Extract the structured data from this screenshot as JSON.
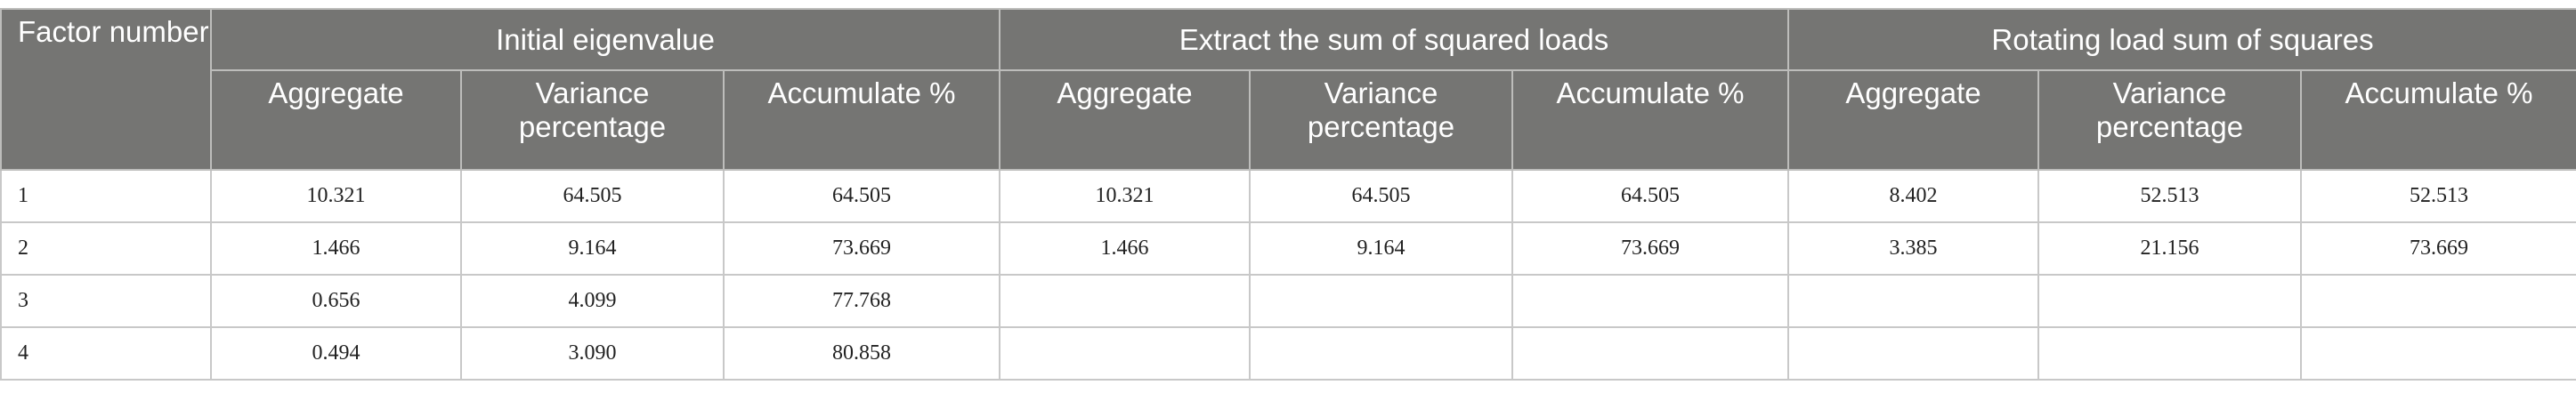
{
  "table": {
    "factor_header": "Factor number",
    "groups": [
      "Initial eigenvalue",
      "Extract the sum of squared loads",
      "Rotating load sum of squares"
    ],
    "subheaders": [
      "Aggregate",
      "Variance percentage",
      "Accumulate %"
    ],
    "rows": [
      [
        "1",
        "10.321",
        "64.505",
        "64.505",
        "10.321",
        "64.505",
        "64.505",
        "8.402",
        "52.513",
        "52.513"
      ],
      [
        "2",
        "1.466",
        "9.164",
        "73.669",
        "1.466",
        "9.164",
        "73.669",
        "3.385",
        "21.156",
        "73.669"
      ],
      [
        "3",
        "0.656",
        "4.099",
        "77.768"
      ],
      [
        "4",
        "0.494",
        "3.090",
        "80.858"
      ]
    ]
  }
}
